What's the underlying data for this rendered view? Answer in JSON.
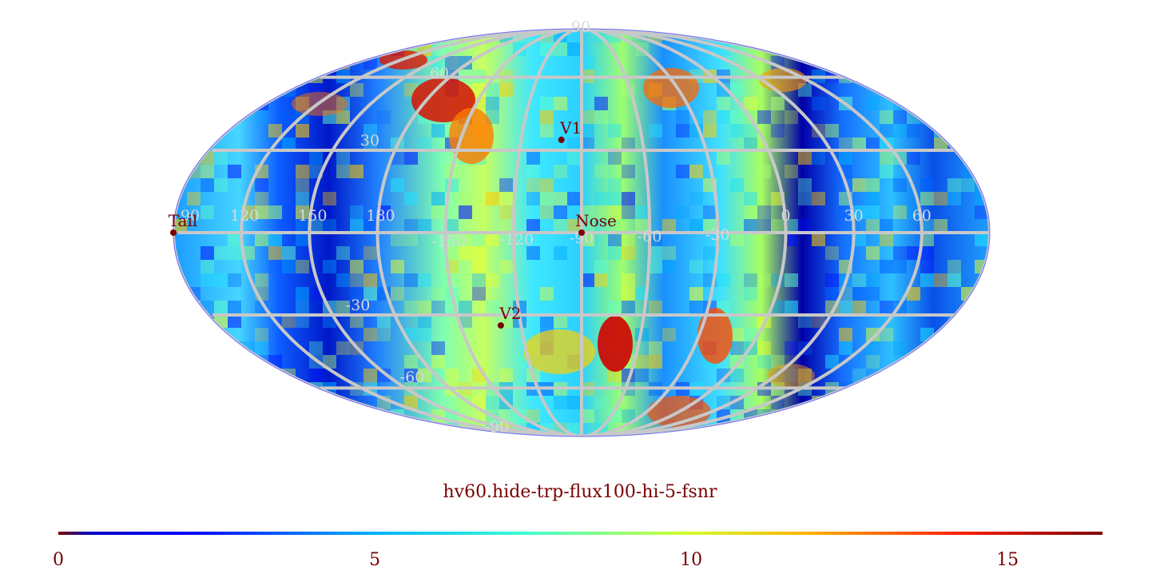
{
  "title": "hv60.hide-trp-flux100-hi-5-fsnr",
  "projection": "mollweide",
  "colormap": "jet",
  "grid_color": "#cccccc",
  "marker_color": "#7a0000",
  "lon_labels": [
    "60",
    "30",
    "0",
    "-30",
    "-60",
    "-90",
    "-120",
    "-150",
    "180",
    "150",
    "120",
    "90"
  ],
  "lat_labels": [
    "90",
    "60",
    "30",
    "-30",
    "-60",
    "-90"
  ],
  "markers": [
    {
      "name": "V1",
      "lon": -94,
      "lat": 34
    },
    {
      "name": "Nose",
      "lon": -104,
      "lat": 0
    },
    {
      "name": "V2",
      "lon": -64,
      "lat": -34
    },
    {
      "name": "Tail",
      "lon": 76,
      "lat": 0
    }
  ],
  "colorbar": {
    "min": 0,
    "max": 16.5,
    "ticks": [
      "0",
      "5",
      "10",
      "15"
    ],
    "tick_values": [
      0,
      5,
      10,
      15
    ]
  }
}
